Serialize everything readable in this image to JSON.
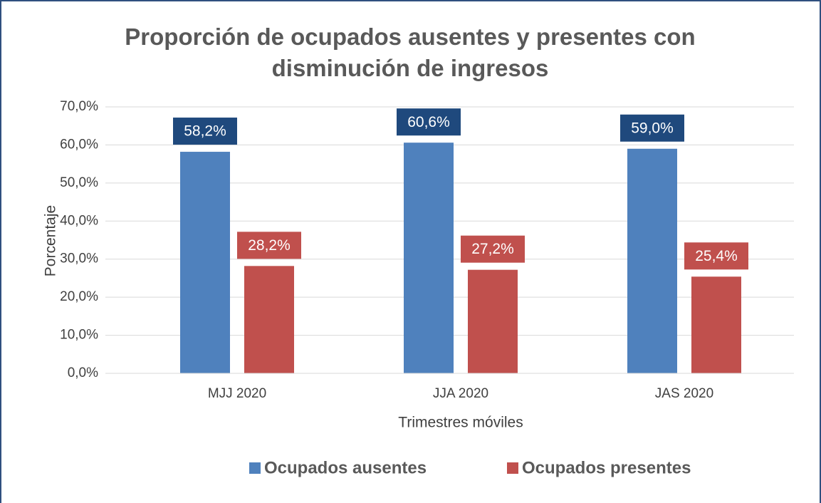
{
  "chart_data": {
    "type": "bar",
    "title": "Proporción de ocupados ausentes y presentes con disminución de ingresos",
    "y_label": "Porcentaje",
    "x_label": "Trimestres móviles",
    "categories": [
      "MJJ 2020",
      "JJA 2020",
      "JAS 2020"
    ],
    "series": [
      {
        "name": "Ocupados ausentes",
        "color": "#4f81bd",
        "label_color": "#1f497d",
        "values": [
          58.2,
          60.6,
          59.0
        ],
        "value_labels": [
          "58,2%",
          "60,6%",
          "59,0%"
        ]
      },
      {
        "name": "Ocupados presentes",
        "color": "#c0504d",
        "label_color": "#c0504d",
        "values": [
          28.2,
          27.2,
          25.4
        ],
        "value_labels": [
          "28,2%",
          "27,2%",
          "25,4%"
        ]
      }
    ],
    "ylim": [
      0,
      70
    ],
    "yticks": [
      {
        "value": 0,
        "label": "0,0%"
      },
      {
        "value": 10,
        "label": "10,0%"
      },
      {
        "value": 20,
        "label": "20,0%"
      },
      {
        "value": 30,
        "label": "30,0%"
      },
      {
        "value": 40,
        "label": "40,0%"
      },
      {
        "value": 50,
        "label": "50,0%"
      },
      {
        "value": 60,
        "label": "60,0%"
      },
      {
        "value": 70,
        "label": "70,0%"
      }
    ],
    "grid": true,
    "legend": "bottom"
  }
}
